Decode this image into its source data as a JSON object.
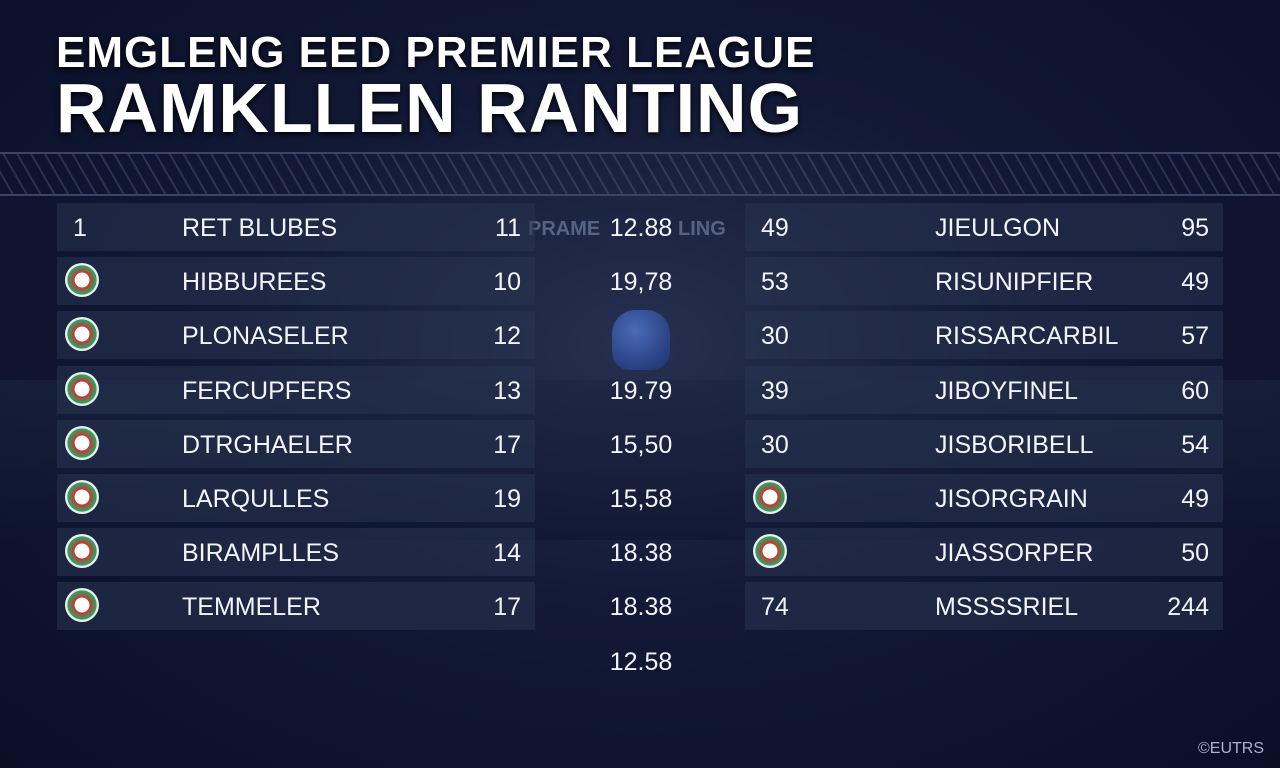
{
  "header": {
    "title_line1": "EMGLENG EED PREMIER LEAGUE",
    "title_line2": "RAMKLLEN RANTING"
  },
  "watermark": [
    "PRAME",
    "LING"
  ],
  "left_table": {
    "rows": [
      {
        "rank": "1",
        "name": "RET  BLUBES",
        "value": "11"
      },
      {
        "rank": null,
        "name": "HIBBUREES",
        "value": "10"
      },
      {
        "rank": null,
        "name": "PLONASELER",
        "value": "12"
      },
      {
        "rank": null,
        "name": "FERCUPFERS",
        "value": "13"
      },
      {
        "rank": null,
        "name": "DTRGHAELER",
        "value": "17"
      },
      {
        "rank": null,
        "name": "LARQULLES",
        "value": "19"
      },
      {
        "rank": null,
        "name": "BIRAMPLLES",
        "value": "14"
      },
      {
        "rank": null,
        "name": "TEMMELER",
        "value": "17"
      }
    ]
  },
  "middle_column": [
    "12.88",
    "19,78",
    null,
    "19.79",
    "15,50",
    "15,58",
    "18.38",
    "18.38",
    "12.58"
  ],
  "right_table": {
    "rows": [
      {
        "rank": "49",
        "name": "JIEULGON",
        "value": "95"
      },
      {
        "rank": "53",
        "name": "RISUNIPFIER",
        "value": "49"
      },
      {
        "rank": "30",
        "name": "RISSARCARBIL",
        "value": "57"
      },
      {
        "rank": "39",
        "name": "JIBOYFINEL",
        "value": "60"
      },
      {
        "rank": "30",
        "name": "JISBORIBELL",
        "value": "54"
      },
      {
        "rank": null,
        "name": "JISORGRAIN",
        "value": "49"
      },
      {
        "rank": null,
        "name": "JIASSORPER",
        "value": "50"
      },
      {
        "rank": "74",
        "name": "MSSSSRIEL",
        "value": "244"
      }
    ]
  },
  "footer": {
    "credit": "©EUTRS"
  }
}
